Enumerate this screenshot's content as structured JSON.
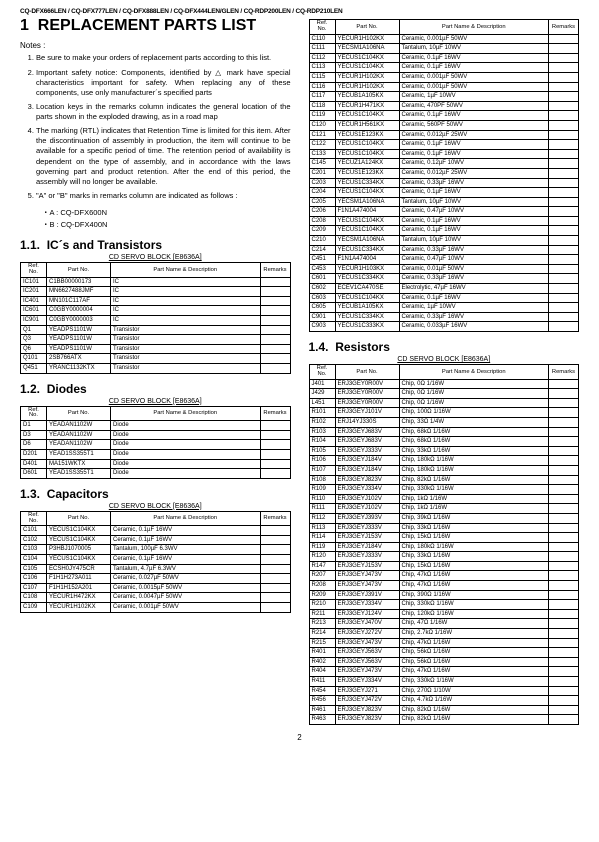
{
  "header_models": "CQ-DFX666LEN / CQ-DFX777LEN / CQ-DFX888LEN / CQ-DFX444LEN/GLEN / CQ-RDP200LEN / CQ-RDP210LEN",
  "main_title_num": "1",
  "main_title": "REPLACEMENT PARTS LIST",
  "notes_label": "Notes :",
  "notes": [
    "Be sure to make your orders of replacement parts according to this list.",
    "Important safety notice: Components, identified by △ mark have special characteristics important for safety. When replacing any of these components, use only manufacturer´s specified parts",
    "Location keys in the remarks column indicates the general location of the parts shown in the exploded drawing, as in a road map",
    "The marking (RTL) indicates that Retention Time is limited for this item. After the discontinuation of assembly in production, the item will continue to be available for a specific period of time. The retention period of availability is dependent on the type of assembly, and in accordance with the laws governing part and product retention. After the end of this period, the assembly will no longer be available.",
    "\"A\" or \"B\" marks in remarks column are indicated as follows :"
  ],
  "sub_bullets": [
    "・A : CQ-DFX600N",
    "・B : CQ-DFX400N"
  ],
  "sections": {
    "ic": {
      "num": "1.1.",
      "title": "IC´s and Transistors"
    },
    "diodes": {
      "num": "1.2.",
      "title": "Diodes"
    },
    "caps": {
      "num": "1.3.",
      "title": "Capacitors"
    },
    "res": {
      "num": "1.4.",
      "title": "Resistors"
    }
  },
  "block_label": "CD SERVO BLOCK [E8636A]",
  "table_headers": {
    "ref": "Ref.\nNo.",
    "part": "Part No.",
    "desc": "Part Name & Description",
    "remarks": "Remarks"
  },
  "ic_rows": [
    [
      "IC101",
      "C1BB00000173",
      "IC"
    ],
    [
      "IC201",
      "MN6627488JMF",
      "IC"
    ],
    [
      "IC401",
      "MN101C117AF",
      "IC"
    ],
    [
      "IC601",
      "C0GBY0000004",
      "IC"
    ],
    [
      "IC901",
      "C0GBY0000003",
      "IC"
    ],
    [
      "Q1",
      "YEADPS1101W",
      "Transistor"
    ],
    [
      "Q3",
      "YEADPS1101W",
      "Transistor"
    ],
    [
      "Q6",
      "YEADPS1101W",
      "Transistor"
    ],
    [
      "Q101",
      "2SB766ATX",
      "Transistor"
    ],
    [
      "Q451",
      "YRANC1132KTX",
      "Transistor"
    ]
  ],
  "diode_rows": [
    [
      "D1",
      "YEADAN1102W",
      "Diode"
    ],
    [
      "D3",
      "YEADAN1102W",
      "Diode"
    ],
    [
      "D6",
      "YEADAN1102W",
      "Diode"
    ],
    [
      "D201",
      "YEAD1SS355T1",
      "Diode"
    ],
    [
      "D401",
      "MA151WKTX",
      "Diode"
    ],
    [
      "D601",
      "YEAD1SS355T1",
      "Diode"
    ]
  ],
  "cap_rows_left": [
    [
      "C101",
      "YECUS1C104KX",
      "Ceramic, 0.1µF 16WV"
    ],
    [
      "C102",
      "YECUS1C104KX",
      "Ceramic, 0.1µF 16WV"
    ],
    [
      "C103",
      "P3HBJ1070005",
      "Tantalum, 100µF 6.3WV"
    ],
    [
      "C104",
      "YECUS1C104KX",
      "Ceramic, 0.1µF 16WV"
    ],
    [
      "C105",
      "ECSH0JY475CR",
      "Tantalum, 4.7µF 6.3WV"
    ],
    [
      "C106",
      "F1H1H273A011",
      "Ceramic, 0.027µF 50WV"
    ],
    [
      "C107",
      "F1H1H152A201",
      "Ceramic, 0.0015µF 50WV"
    ],
    [
      "C108",
      "YECUR1H472KX",
      "Ceramic, 0.0047µF 50WV"
    ],
    [
      "C109",
      "YECUR1H102KX",
      "Ceramic, 0.001µF 50WV"
    ]
  ],
  "cap_rows_right": [
    [
      "C110",
      "YECUR1H102KX",
      "Ceramic, 0.001µF 50WV"
    ],
    [
      "C111",
      "YECSM1A106NA",
      "Tantalum, 10µF 10WV"
    ],
    [
      "C112",
      "YECUS1C104KX",
      "Ceramic, 0.1µF 16WV"
    ],
    [
      "C113",
      "YECUS1C104KX",
      "Ceramic, 0.1µF 16WV"
    ],
    [
      "C115",
      "YECUR1H102KX",
      "Ceramic, 0.001µF 50WV"
    ],
    [
      "C116",
      "YECUR1H102KX",
      "Ceramic, 0.001µF 50WV"
    ],
    [
      "C117",
      "YECUB1A105KX",
      "Ceramic, 1µF 10WV"
    ],
    [
      "C118",
      "YECUR1H471KX",
      "Ceramic, 470PF 50WV"
    ],
    [
      "C119",
      "YECUS1C104KX",
      "Ceramic, 0.1µF 16WV"
    ],
    [
      "C120",
      "YECUR1H561KX",
      "Ceramic, 560PF 50WV"
    ],
    [
      "C121",
      "YECUS1E123KX",
      "Ceramic, 0.012µF 25WV"
    ],
    [
      "C122",
      "YECUS1C104KX",
      "Ceramic, 0.1µF 16WV"
    ],
    [
      "C133",
      "YECUS1C104KX",
      "Ceramic, 0.1µF 16WV"
    ],
    [
      "C145",
      "YECUZ1A124KX",
      "Ceramic, 0.12µF 10WV"
    ],
    [
      "C201",
      "YECUS1E123KX",
      "Ceramic, 0.012µF 25WV"
    ],
    [
      "C203",
      "YECUS1C334KX",
      "Ceramic, 0.33µF 16WV"
    ],
    [
      "C204",
      "YECUS1C104KX",
      "Ceramic, 0.1µF 16WV"
    ],
    [
      "C205",
      "YECSM1A106NA",
      "Tantalum, 10µF 10WV"
    ],
    [
      "C206",
      "F1N1A474004",
      "Ceramic, 0.47µF 10WV"
    ],
    [
      "C208",
      "YECUS1C104KX",
      "Ceramic, 0.1µF 16WV"
    ],
    [
      "C209",
      "YECUS1C104KX",
      "Ceramic, 0.1µF 16WV"
    ],
    [
      "C210",
      "YECSM1A106NA",
      "Tantalum, 10µF 10WV"
    ],
    [
      "C214",
      "YECUS1C334KX",
      "Ceramic, 0.33µF 16WV"
    ],
    [
      "C451",
      "F1N1A474004",
      "Ceramic, 0.47µF 10WV"
    ],
    [
      "C453",
      "YECUR1H103KX",
      "Ceramic, 0.01µF 50WV"
    ],
    [
      "C601",
      "YECUS1C334KX",
      "Ceramic, 0.33µF 16WV"
    ],
    [
      "C602",
      "ECEV1CA470SE",
      "Electrolytic, 47µF 16WV"
    ],
    [
      "C603",
      "YECUS1C104KX",
      "Ceramic, 0.1µF 16WV"
    ],
    [
      "C605",
      "YECUB1A105KX",
      "Ceramic, 1µF 10WV"
    ],
    [
      "C901",
      "YECUS1C334KX",
      "Ceramic, 0.33µF 16WV"
    ],
    [
      "C903",
      "YECUS1C333KX",
      "Ceramic, 0.033µF 16WV"
    ]
  ],
  "res_rows": [
    [
      "J401",
      "ERJ3GEY0R00V",
      "Chip, 0Ω 1/16W"
    ],
    [
      "J429",
      "ERJ3GEY0R00V",
      "Chip, 0Ω 1/16W"
    ],
    [
      "L451",
      "ERJ3GEY0R00V",
      "Chip, 0Ω 1/16W"
    ],
    [
      "R101",
      "ERJ3GEYJ101V",
      "Chip, 100Ω 1/16W"
    ],
    [
      "R102",
      "ERJ14YJ330S",
      "Chip, 33Ω 1/4W"
    ],
    [
      "R103",
      "ERJ3GEYJ683V",
      "Chip, 68kΩ 1/16W"
    ],
    [
      "R104",
      "ERJ3GEYJ683V",
      "Chip, 68kΩ 1/16W"
    ],
    [
      "R105",
      "ERJ3GEYJ333V",
      "Chip, 33kΩ 1/16W"
    ],
    [
      "R106",
      "ERJ3GEYJ184V",
      "Chip, 180kΩ 1/16W"
    ],
    [
      "R107",
      "ERJ3GEYJ184V",
      "Chip, 180kΩ 1/16W"
    ],
    [
      "R108",
      "ERJ3GEYJ823V",
      "Chip, 82kΩ 1/16W"
    ],
    [
      "R109",
      "ERJ3GEYJ334V",
      "Chip, 330kΩ 1/16W"
    ],
    [
      "R110",
      "ERJ3GEYJ102V",
      "Chip, 1kΩ 1/16W"
    ],
    [
      "R111",
      "ERJ3GEYJ102V",
      "Chip, 1kΩ 1/16W"
    ],
    [
      "R112",
      "ERJ3GEYJ393V",
      "Chip, 39kΩ 1/16W"
    ],
    [
      "R113",
      "ERJ3GEYJ333V",
      "Chip, 33kΩ 1/16W"
    ],
    [
      "R114",
      "ERJ3GEYJ153V",
      "Chip, 15kΩ 1/16W"
    ],
    [
      "R119",
      "ERJ3GEYJ184V",
      "Chip, 180kΩ 1/16W"
    ],
    [
      "R120",
      "ERJ3GEYJ333V",
      "Chip, 33kΩ 1/16W"
    ],
    [
      "R147",
      "ERJ3GEYJ153V",
      "Chip, 15kΩ 1/16W"
    ],
    [
      "R207",
      "ERJ3GEYJ473V",
      "Chip, 47kΩ 1/16W"
    ],
    [
      "R208",
      "ERJ3GEYJ473V",
      "Chip, 47kΩ 1/16W"
    ],
    [
      "R209",
      "ERJ3GEYJ391V",
      "Chip, 390Ω 1/16W"
    ],
    [
      "R210",
      "ERJ3GEYJ334V",
      "Chip, 330kΩ 1/16W"
    ],
    [
      "R211",
      "ERJ3GEYJ124V",
      "Chip, 120kΩ 1/16W"
    ],
    [
      "R213",
      "ERJ3GEYJ470V",
      "Chip, 47Ω 1/16W"
    ],
    [
      "R214",
      "ERJ3GEYJ272V",
      "Chip, 2.7kΩ 1/16W"
    ],
    [
      "R215",
      "ERJ3GEYJ473V",
      "Chip, 47kΩ 1/16W"
    ],
    [
      "R401",
      "ERJ3GEYJ563V",
      "Chip, 56kΩ 1/16W"
    ],
    [
      "R402",
      "ERJ3GEYJ563V",
      "Chip, 56kΩ 1/16W"
    ],
    [
      "R404",
      "ERJ3GEYJ473V",
      "Chip, 47kΩ 1/16W"
    ],
    [
      "R411",
      "ERJ3GEYJ334V",
      "Chip, 330kΩ 1/16W"
    ],
    [
      "R454",
      "ERJ3GEYJ271",
      "Chip, 270Ω 1/10W"
    ],
    [
      "R456",
      "ERJ3GEYJ472V",
      "Chip, 4.7kΩ 1/16W"
    ],
    [
      "R461",
      "ERJ3GEYJ823V",
      "Chip, 82kΩ 1/16W"
    ],
    [
      "R463",
      "ERJ3GEYJ823V",
      "Chip, 82kΩ 1/16W"
    ]
  ],
  "page_number": "2"
}
